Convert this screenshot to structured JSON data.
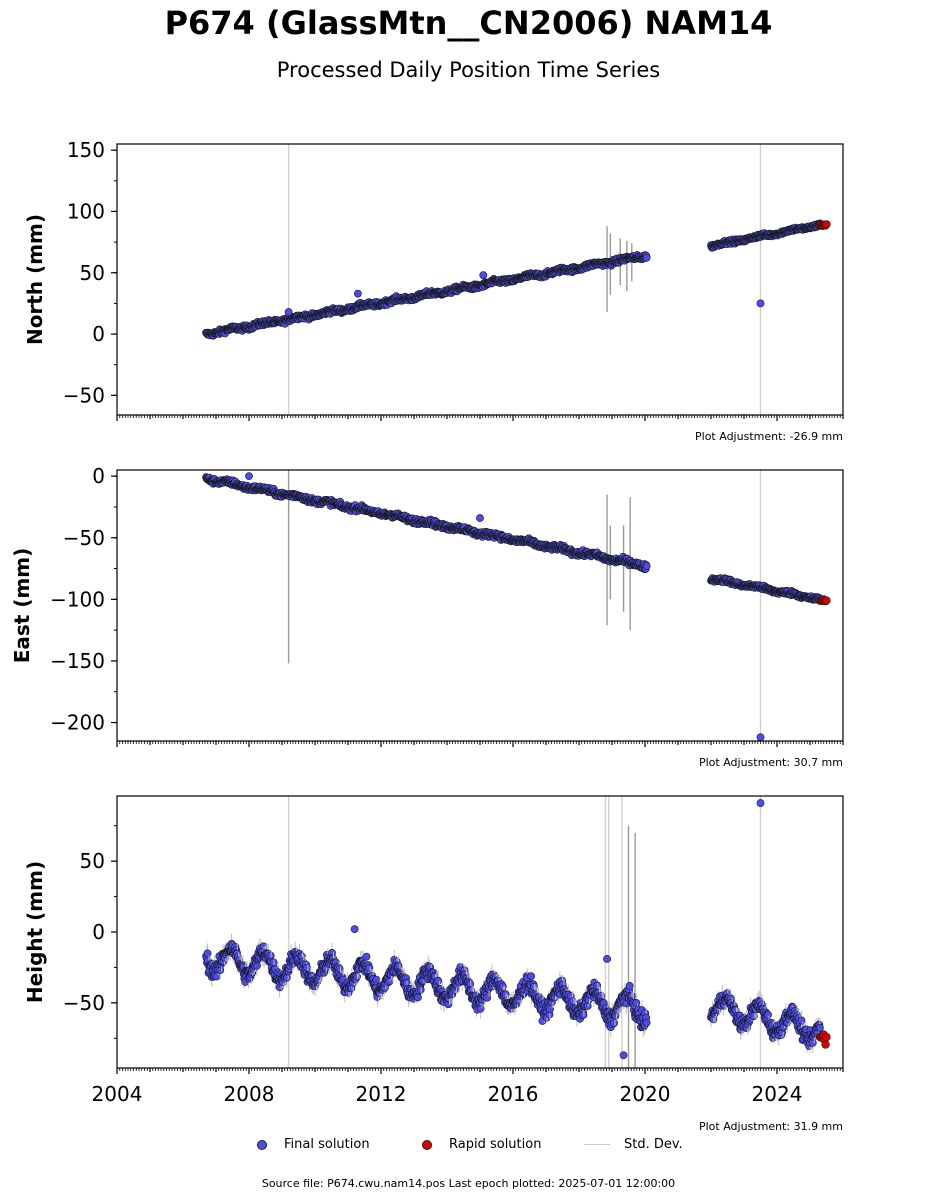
{
  "title": "P674 (GlassMtn__CN2006) NAM14",
  "subtitle": "Processed Daily Position Time Series",
  "footer": "Source file: P674.cwu.nam14.pos  Last epoch plotted: 2025-07-01 12:00:00",
  "legend": {
    "final": "Final solution",
    "rapid": "Rapid solution",
    "std": "Std. Dev."
  },
  "colors": {
    "final": "#4b4bf0",
    "rapid": "#e00000",
    "std": "#bdbdbd",
    "edge": "#1a1a1a"
  },
  "chart_data": [
    {
      "type": "scatter",
      "ylabel": "North (mm)",
      "adjustment": "Plot Adjustment: -26.9 mm",
      "xlim": [
        2004,
        2026
      ],
      "ylim": [
        -66,
        155
      ],
      "yticks": [
        150,
        100,
        50,
        0,
        -50
      ],
      "xticks": [
        "2004",
        "2008",
        "2012",
        "2016",
        "2020",
        "2024"
      ],
      "show_xticklabels": false,
      "segments": [
        {
          "x": [
            2006.7,
            2020.05
          ],
          "y": [
            0,
            64
          ],
          "noise": 2.0,
          "seasonal": 0.8
        },
        {
          "x": [
            2022.0,
            2025.3
          ],
          "y": [
            72,
            89
          ],
          "noise": 1.5,
          "seasonal": 0.6
        }
      ],
      "rapid": {
        "x": [
          2025.3,
          2025.5
        ],
        "y": 89
      },
      "outliers": [
        {
          "x": 2009.2,
          "y": 18
        },
        {
          "x": 2011.3,
          "y": 33
        },
        {
          "x": 2015.1,
          "y": 48
        },
        {
          "x": 2023.5,
          "y": 25
        }
      ],
      "std_bars": [
        {
          "x": 2009.2,
          "y1": -66,
          "y2": 155
        },
        {
          "x": 2023.5,
          "y1": -66,
          "y2": 155
        },
        {
          "x": 2018.85,
          "y1": 18,
          "y2": 88
        },
        {
          "x": 2018.95,
          "y1": 32,
          "y2": 82
        },
        {
          "x": 2019.25,
          "y1": 40,
          "y2": 78
        },
        {
          "x": 2019.45,
          "y1": 35,
          "y2": 76
        },
        {
          "x": 2019.6,
          "y1": 43,
          "y2": 74
        }
      ]
    },
    {
      "type": "scatter",
      "ylabel": "East (mm)",
      "adjustment": "Plot Adjustment: 30.7 mm",
      "xlim": [
        2004,
        2026
      ],
      "ylim": [
        -215,
        5
      ],
      "yticks": [
        0,
        -50,
        -100,
        -150,
        -200
      ],
      "xticks": [
        "2004",
        "2008",
        "2012",
        "2016",
        "2020",
        "2024"
      ],
      "show_xticklabels": false,
      "segments": [
        {
          "x": [
            2006.7,
            2020.05
          ],
          "y": [
            -2,
            -73
          ],
          "noise": 2.2,
          "seasonal": 0.9
        },
        {
          "x": [
            2022.0,
            2025.3
          ],
          "y": [
            -83,
            -100
          ],
          "noise": 1.8,
          "seasonal": 0.7
        }
      ],
      "rapid": {
        "x": [
          2025.3,
          2025.5
        ],
        "y": -101
      },
      "outliers": [
        {
          "x": 2008.0,
          "y": 0
        },
        {
          "x": 2015.0,
          "y": -34
        },
        {
          "x": 2023.5,
          "y": -212
        }
      ],
      "std_bars": [
        {
          "x": 2009.2,
          "y1": -152,
          "y2": 5
        },
        {
          "x": 2023.5,
          "y1": -215,
          "y2": 5
        },
        {
          "x": 2018.85,
          "y1": -121,
          "y2": -15
        },
        {
          "x": 2018.95,
          "y1": -100,
          "y2": -40
        },
        {
          "x": 2019.35,
          "y1": -110,
          "y2": -40
        },
        {
          "x": 2019.55,
          "y1": -125,
          "y2": -17
        }
      ]
    },
    {
      "type": "scatter",
      "ylabel": "Height (mm)",
      "adjustment": "Plot Adjustment: 31.9 mm",
      "xlim": [
        2004,
        2026
      ],
      "ylim": [
        -96,
        96
      ],
      "yticks": [
        50,
        0,
        -50
      ],
      "xticks": [
        "2004",
        "2008",
        "2012",
        "2016",
        "2020",
        "2024"
      ],
      "show_xticklabels": true,
      "segments": [
        {
          "x": [
            2006.7,
            2020.05
          ],
          "y": [
            -18,
            -55
          ],
          "noise": 5.5,
          "seasonal": 9
        },
        {
          "x": [
            2022.0,
            2025.3
          ],
          "y": [
            -52,
            -70
          ],
          "noise": 5.0,
          "seasonal": 8
        }
      ],
      "rapid": {
        "x": [
          2025.3,
          2025.5
        ],
        "y": -75
      },
      "outliers": [
        {
          "x": 2011.2,
          "y": 2
        },
        {
          "x": 2018.85,
          "y": -19
        },
        {
          "x": 2019.35,
          "y": -87
        },
        {
          "x": 2023.5,
          "y": 91
        }
      ],
      "std_bars": [
        {
          "x": 2009.2,
          "y1": -96,
          "y2": 96
        },
        {
          "x": 2023.5,
          "y1": -96,
          "y2": 96
        },
        {
          "x": 2018.8,
          "y1": -96,
          "y2": 96
        },
        {
          "x": 2018.9,
          "y1": -96,
          "y2": 96
        },
        {
          "x": 2019.3,
          "y1": -96,
          "y2": 96
        },
        {
          "x": 2019.5,
          "y1": -96,
          "y2": 75
        },
        {
          "x": 2019.7,
          "y1": -96,
          "y2": 70
        }
      ]
    }
  ]
}
